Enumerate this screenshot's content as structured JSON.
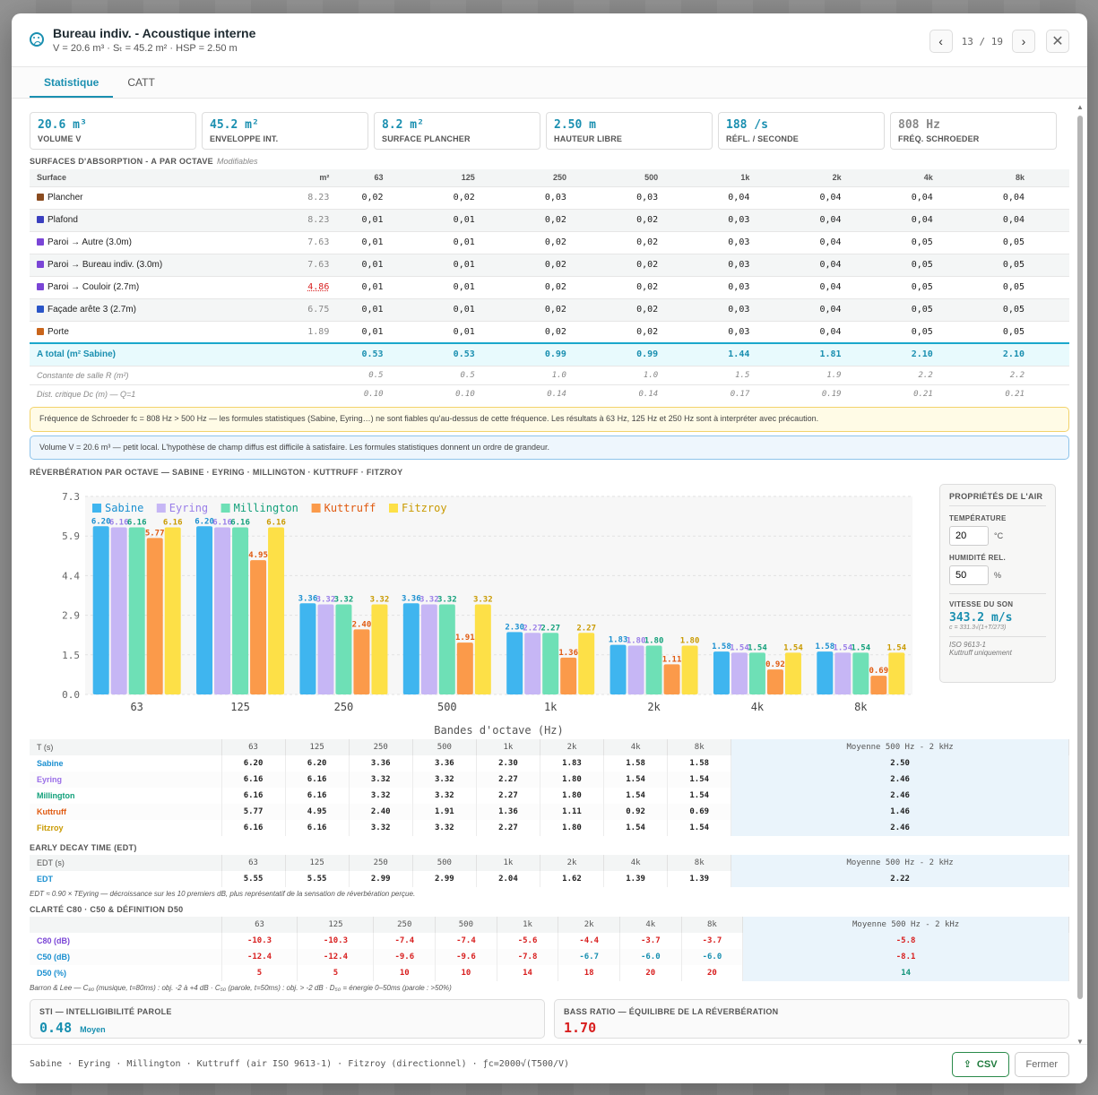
{
  "header": {
    "title": "Bureau indiv. - Acoustique interne",
    "subtitle": "V = 20.6 m³ · Sₜ = 45.2 m² · HSP = 2.50 m",
    "prev": "‹",
    "next": "›",
    "counter": "13 / 19",
    "close": "✕"
  },
  "tabs": [
    "Statistique",
    "CATT"
  ],
  "kpis": [
    {
      "value": "20.6 m³",
      "label": "Volume V"
    },
    {
      "value": "45.2 m²",
      "label": "Enveloppe int."
    },
    {
      "value": "8.2 m²",
      "label": "Surface plancher"
    },
    {
      "value": "2.50 m",
      "label": "Hauteur libre"
    },
    {
      "value": "188 /s",
      "label": "Réfl. / seconde"
    },
    {
      "value": "808 Hz",
      "label": "Fréq. Schroeder"
    }
  ],
  "absorption": {
    "section_title": "Surfaces d'absorption - α par octave",
    "modifiable": "Modifiables",
    "headers": [
      "Surface",
      "m²",
      "63",
      "125",
      "250",
      "500",
      "1k",
      "2k",
      "4k",
      "8k"
    ],
    "rows": [
      {
        "name": "Plancher",
        "color": "#8a4b1f",
        "m2": "8.23",
        "v": [
          "0,02",
          "0,02",
          "0,03",
          "0,03",
          "0,04",
          "0,04",
          "0,04",
          "0,04"
        ]
      },
      {
        "name": "Plafond",
        "color": "#3a3fbf",
        "m2": "8.23",
        "v": [
          "0,01",
          "0,01",
          "0,02",
          "0,02",
          "0,03",
          "0,04",
          "0,04",
          "0,04"
        ]
      },
      {
        "name": "Paroi → Autre (3.0m)",
        "color": "#7a45d6",
        "m2": "7.63",
        "v": [
          "0,01",
          "0,01",
          "0,02",
          "0,02",
          "0,03",
          "0,04",
          "0,05",
          "0,05"
        ]
      },
      {
        "name": "Paroi → Bureau indiv. (3.0m)",
        "color": "#7a45d6",
        "m2": "7.63",
        "v": [
          "0,01",
          "0,01",
          "0,02",
          "0,02",
          "0,03",
          "0,04",
          "0,05",
          "0,05"
        ]
      },
      {
        "name": "Paroi → Couloir (2.7m)",
        "color": "#7a45d6",
        "m2": "4.86",
        "v": [
          "0,01",
          "0,01",
          "0,02",
          "0,02",
          "0,03",
          "0,04",
          "0,05",
          "0,05"
        ]
      },
      {
        "name": "Façade arête 3 (2.7m)",
        "color": "#2a55c7",
        "m2": "6.75",
        "v": [
          "0,01",
          "0,01",
          "0,02",
          "0,02",
          "0,03",
          "0,04",
          "0,05",
          "0,05"
        ]
      },
      {
        "name": "Porte",
        "color": "#c9651b",
        "m2": "1.89",
        "v": [
          "0,01",
          "0,01",
          "0,02",
          "0,02",
          "0,03",
          "0,04",
          "0,05",
          "0,05"
        ]
      }
    ],
    "total": {
      "name": "A total (m² Sabine)",
      "v": [
        "0.53",
        "0.53",
        "0.99",
        "0.99",
        "1.44",
        "1.81",
        "2.10",
        "2.10"
      ]
    },
    "room_const": {
      "name": "Constante de salle R (m²)",
      "v": [
        "0.5",
        "0.5",
        "1.0",
        "1.0",
        "1.5",
        "1.9",
        "2.2",
        "2.2"
      ]
    },
    "crit_dist": {
      "name": "Dist. critique Dc (m) — Q=1",
      "v": [
        "0.10",
        "0.10",
        "0.14",
        "0.14",
        "0.17",
        "0.19",
        "0.21",
        "0.21"
      ]
    }
  },
  "notes": {
    "schroeder": "Fréquence de Schroeder fc = 808 Hz > 500 Hz — les formules statistiques (Sabine, Eyring…) ne sont fiables qu'au-dessus de cette fréquence. Les résultats à 63 Hz, 125 Hz et 250 Hz sont à interpréter avec précaution.",
    "volume": "Volume V = 20.6 m³ — petit local. L'hypothèse de champ diffus est difficile à satisfaire. Les formules statistiques donnent un ordre de grandeur."
  },
  "reverb_title": "Réverbération par octave — Sabine · Eyring · Millington · Kuttruff · Fitzroy",
  "chart_data": {
    "type": "bar",
    "xlabel": "Bandes d'octave (Hz)",
    "ylabel": "",
    "categories": [
      "63",
      "125",
      "250",
      "500",
      "1k",
      "2k",
      "4k",
      "8k"
    ],
    "ylim": [
      0,
      7.3
    ],
    "yticks": [
      "0.0",
      "1.5",
      "2.9",
      "4.4",
      "5.9",
      "7.3"
    ],
    "legend_position": "top-left",
    "grid": true,
    "series": [
      {
        "name": "Sabine",
        "color": "#3fb5ef",
        "label_color": "#1a8fd0",
        "values": [
          6.2,
          6.2,
          3.36,
          3.36,
          2.3,
          1.83,
          1.58,
          1.58
        ]
      },
      {
        "name": "Eyring",
        "color": "#c6b6f5",
        "label_color": "#9a7ee8",
        "values": [
          6.16,
          6.16,
          3.32,
          3.32,
          2.27,
          1.8,
          1.54,
          1.54
        ]
      },
      {
        "name": "Millington",
        "color": "#6ee0b6",
        "label_color": "#12a07a",
        "values": [
          6.16,
          6.16,
          3.32,
          3.32,
          2.27,
          1.8,
          1.54,
          1.54
        ]
      },
      {
        "name": "Kuttruff",
        "color": "#fb9a4a",
        "label_color": "#e05a10",
        "values": [
          5.77,
          4.95,
          2.4,
          1.91,
          1.36,
          1.11,
          0.92,
          0.69
        ]
      },
      {
        "name": "Fitzroy",
        "color": "#fde047",
        "label_color": "#c99a00",
        "values": [
          6.16,
          6.16,
          3.32,
          3.32,
          2.27,
          1.8,
          1.54,
          1.54
        ]
      }
    ]
  },
  "air": {
    "title": "Propriétés de l'air",
    "temp_label": "Température",
    "temp_value": "20",
    "temp_unit": "°C",
    "hum_label": "Humidité rel.",
    "hum_value": "50",
    "hum_unit": "%",
    "speed_label": "Vitesse du son",
    "speed_value": "343.2 m/s",
    "speed_formula": "c = 331.3√(1+T/273)",
    "iso_line1": "ISO 9613-1",
    "iso_line2": "Kuttruff uniquement"
  },
  "t_table": {
    "headers": [
      "T (s)",
      "63",
      "125",
      "250",
      "500",
      "1k",
      "2k",
      "4k",
      "8k",
      "Moyenne 500 Hz - 2 kHz"
    ],
    "rows": [
      {
        "name": "Sabine",
        "color": "#1a8fd0",
        "v": [
          "6.20",
          "6.20",
          "3.36",
          "3.36",
          "2.30",
          "1.83",
          "1.58",
          "1.58"
        ],
        "avg": "2.50"
      },
      {
        "name": "Eyring",
        "color": "#9a6ee8",
        "v": [
          "6.16",
          "6.16",
          "3.32",
          "3.32",
          "2.27",
          "1.80",
          "1.54",
          "1.54"
        ],
        "avg": "2.46"
      },
      {
        "name": "Millington",
        "color": "#12a07a",
        "v": [
          "6.16",
          "6.16",
          "3.32",
          "3.32",
          "2.27",
          "1.80",
          "1.54",
          "1.54"
        ],
        "avg": "2.46"
      },
      {
        "name": "Kuttruff",
        "color": "#e05a10",
        "v": [
          "5.77",
          "4.95",
          "2.40",
          "1.91",
          "1.36",
          "1.11",
          "0.92",
          "0.69"
        ],
        "avg": "1.46"
      },
      {
        "name": "Fitzroy",
        "color": "#c99a00",
        "v": [
          "6.16",
          "6.16",
          "3.32",
          "3.32",
          "2.27",
          "1.80",
          "1.54",
          "1.54"
        ],
        "avg": "2.46"
      }
    ]
  },
  "edt": {
    "title": "Early Decay Time (EDT)",
    "headers": [
      "EDT (s)",
      "63",
      "125",
      "250",
      "500",
      "1k",
      "2k",
      "4k",
      "8k",
      "Moyenne 500 Hz - 2 kHz"
    ],
    "row": {
      "name": "EDT",
      "v": [
        "5.55",
        "5.55",
        "2.99",
        "2.99",
        "2.04",
        "1.62",
        "1.39",
        "1.39"
      ],
      "avg": "2.22"
    },
    "footnote": "EDT ≈ 0.90 × TEyring — décroissance sur les 10 premiers dB, plus représentatif de la sensation de réverbération perçue."
  },
  "clarity": {
    "title": "Clarté C80 · C50 & Définition D50",
    "headers": [
      "",
      "63",
      "125",
      "250",
      "500",
      "1k",
      "2k",
      "4k",
      "8k",
      "Moyenne 500 Hz - 2 kHz"
    ],
    "rows": [
      {
        "name": "C80 (dB)",
        "v": [
          "-10.3",
          "-10.3",
          "-7.4",
          "-7.4",
          "-5.6",
          "-4.4",
          "-3.7",
          "-3.7"
        ],
        "c": [
          "red",
          "red",
          "red",
          "red",
          "red",
          "red",
          "red",
          "red"
        ],
        "avg": "-5.8",
        "avgc": "red"
      },
      {
        "name": "C50 (dB)",
        "v": [
          "-12.4",
          "-12.4",
          "-9.6",
          "-9.6",
          "-7.8",
          "-6.7",
          "-6.0",
          "-6.0"
        ],
        "c": [
          "red",
          "red",
          "red",
          "red",
          "red",
          "teal",
          "teal",
          "teal"
        ],
        "avg": "-8.1",
        "avgc": "red"
      },
      {
        "name": "D50 (%)",
        "v": [
          "5",
          "5",
          "10",
          "10",
          "14",
          "18",
          "20",
          "20"
        ],
        "c": [
          "red",
          "red",
          "red",
          "red",
          "red",
          "red",
          "red",
          "red"
        ],
        "avg": "14",
        "avgc": "green"
      }
    ],
    "footnote": "Barron & Lee — C₈₀ (musique, t=80ms) : obj. -2 à +4 dB · C₅₀ (parole, t=50ms) : obj. > -2 dB · D₅₀ = énergie 0–50ms (parole : >50%)"
  },
  "cards": [
    {
      "title": "STI — INTELLIGIBILITÉ PAROLE",
      "value": "0.48",
      "extra": "Moyen"
    },
    {
      "title": "BASS RATIO — ÉQUILIBRE DE LA RÉVERBÉRATION",
      "value": "1.70"
    }
  ],
  "footer": {
    "legend": "Sabine · Eyring · Millington · Kuttruff (air ISO 9613-1) · Fitzroy (directionnel) · ƒc=2000√(T500/V)",
    "csv": "CSV",
    "close": "Fermer"
  }
}
